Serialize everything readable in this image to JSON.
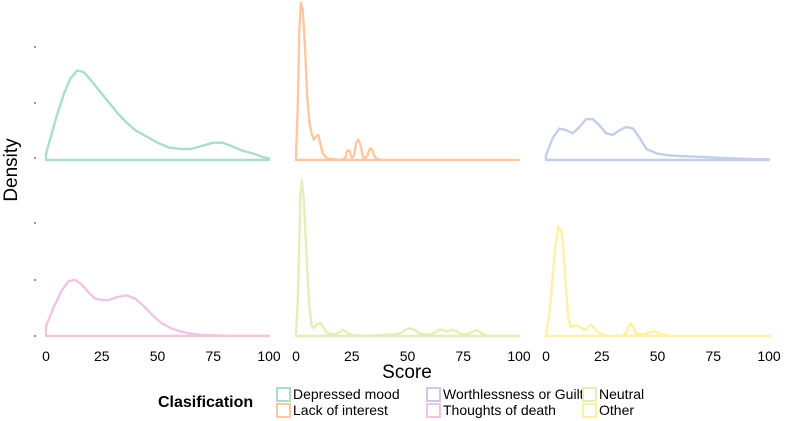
{
  "chart_data": {
    "type": "area",
    "xlabel": "Score",
    "ylabel": "Density",
    "xlim": [
      0,
      100
    ],
    "x_ticks": [
      "0",
      "25",
      "50",
      "75",
      "100"
    ],
    "facets": [
      {
        "name": "Depressed mood",
        "color": "#a9dfc6",
        "points": [
          [
            0,
            0.04
          ],
          [
            2,
            0.14
          ],
          [
            5,
            0.29
          ],
          [
            8,
            0.42
          ],
          [
            11,
            0.52
          ],
          [
            14,
            0.57
          ],
          [
            17,
            0.56
          ],
          [
            20,
            0.51
          ],
          [
            24,
            0.44
          ],
          [
            28,
            0.37
          ],
          [
            32,
            0.3
          ],
          [
            36,
            0.24
          ],
          [
            40,
            0.19
          ],
          [
            45,
            0.15
          ],
          [
            50,
            0.11
          ],
          [
            55,
            0.08
          ],
          [
            60,
            0.07
          ],
          [
            65,
            0.07
          ],
          [
            70,
            0.09
          ],
          [
            75,
            0.11
          ],
          [
            79,
            0.11
          ],
          [
            83,
            0.09
          ],
          [
            88,
            0.06
          ],
          [
            93,
            0.04
          ],
          [
            97,
            0.02
          ],
          [
            100,
            0.01
          ]
        ]
      },
      {
        "name": "Lack of interest",
        "color": "#fcc8a3",
        "points": [
          [
            0,
            0.02
          ],
          [
            0.8,
            0.35
          ],
          [
            1.5,
            0.82
          ],
          [
            2.2,
            1.0
          ],
          [
            3,
            0.96
          ],
          [
            4,
            0.74
          ],
          [
            5,
            0.42
          ],
          [
            6,
            0.24
          ],
          [
            7,
            0.17
          ],
          [
            8,
            0.13
          ],
          [
            9,
            0.15
          ],
          [
            10,
            0.16
          ],
          [
            11,
            0.1
          ],
          [
            12,
            0.04
          ],
          [
            14,
            0.01
          ],
          [
            20,
            0
          ],
          [
            22,
            0.01
          ],
          [
            23,
            0.06
          ],
          [
            24,
            0.06
          ],
          [
            25,
            0.01
          ],
          [
            26,
            0.03
          ],
          [
            27,
            0.11
          ],
          [
            28,
            0.13
          ],
          [
            29,
            0.09
          ],
          [
            30,
            0.02
          ],
          [
            31,
            0.01
          ],
          [
            32,
            0.03
          ],
          [
            33,
            0.07
          ],
          [
            34,
            0.07
          ],
          [
            35,
            0.03
          ],
          [
            36,
            0.01
          ],
          [
            38,
            0
          ],
          [
            100,
            0
          ]
        ]
      },
      {
        "name": "Worthlessness or Guilt",
        "color": "#c5cee8",
        "points": [
          [
            0,
            0.03
          ],
          [
            3,
            0.14
          ],
          [
            6,
            0.2
          ],
          [
            9,
            0.19
          ],
          [
            12,
            0.17
          ],
          [
            15,
            0.21
          ],
          [
            18,
            0.26
          ],
          [
            21,
            0.26
          ],
          [
            24,
            0.22
          ],
          [
            27,
            0.17
          ],
          [
            30,
            0.16
          ],
          [
            33,
            0.19
          ],
          [
            36,
            0.21
          ],
          [
            39,
            0.2
          ],
          [
            42,
            0.14
          ],
          [
            45,
            0.07
          ],
          [
            50,
            0.04
          ],
          [
            55,
            0.03
          ],
          [
            60,
            0.025
          ],
          [
            70,
            0.02
          ],
          [
            80,
            0.012
          ],
          [
            90,
            0.007
          ],
          [
            100,
            0.004
          ]
        ]
      },
      {
        "name": "Thoughts of death",
        "color": "#f0c5e2",
        "points": [
          [
            0,
            0.06
          ],
          [
            3,
            0.17
          ],
          [
            7,
            0.29
          ],
          [
            10,
            0.35
          ],
          [
            13,
            0.36
          ],
          [
            16,
            0.33
          ],
          [
            19,
            0.28
          ],
          [
            22,
            0.24
          ],
          [
            25,
            0.23
          ],
          [
            28,
            0.23
          ],
          [
            32,
            0.25
          ],
          [
            36,
            0.26
          ],
          [
            40,
            0.24
          ],
          [
            44,
            0.19
          ],
          [
            48,
            0.13
          ],
          [
            52,
            0.08
          ],
          [
            56,
            0.05
          ],
          [
            60,
            0.03
          ],
          [
            65,
            0.015
          ],
          [
            70,
            0.007
          ],
          [
            80,
            0.002
          ],
          [
            90,
            0.001
          ],
          [
            100,
            0
          ]
        ]
      },
      {
        "name": "Neutral",
        "color": "#dff0b8",
        "points": [
          [
            0,
            0
          ],
          [
            1,
            0.3
          ],
          [
            2,
            0.92
          ],
          [
            2.6,
            1.0
          ],
          [
            3.5,
            0.88
          ],
          [
            5,
            0.45
          ],
          [
            6,
            0.19
          ],
          [
            7,
            0.07
          ],
          [
            8,
            0.05
          ],
          [
            9,
            0.07
          ],
          [
            10,
            0.08
          ],
          [
            11,
            0.08
          ],
          [
            12,
            0.06
          ],
          [
            14,
            0.02
          ],
          [
            17,
            0.01
          ],
          [
            19,
            0.02
          ],
          [
            20,
            0.03
          ],
          [
            21,
            0.04
          ],
          [
            22,
            0.03
          ],
          [
            24,
            0.01
          ],
          [
            30,
            0
          ],
          [
            45,
            0.01
          ],
          [
            47,
            0.02
          ],
          [
            49,
            0.04
          ],
          [
            51,
            0.05
          ],
          [
            53,
            0.04
          ],
          [
            55,
            0.02
          ],
          [
            57,
            0.01
          ],
          [
            60,
            0.01
          ],
          [
            62,
            0.02
          ],
          [
            64,
            0.04
          ],
          [
            66,
            0.04
          ],
          [
            67,
            0.03
          ],
          [
            68,
            0.03
          ],
          [
            70,
            0.04
          ],
          [
            72,
            0.03
          ],
          [
            74,
            0.01
          ],
          [
            76,
            0.01
          ],
          [
            78,
            0.02
          ],
          [
            80,
            0.03
          ],
          [
            81,
            0.04
          ],
          [
            82,
            0.03
          ],
          [
            84,
            0.01
          ],
          [
            86,
            0
          ],
          [
            100,
            0
          ]
        ]
      },
      {
        "name": "Other",
        "color": "#fdf1a4",
        "points": [
          [
            0,
            0
          ],
          [
            2,
            0.2
          ],
          [
            4,
            0.55
          ],
          [
            5.5,
            0.7
          ],
          [
            7,
            0.67
          ],
          [
            8,
            0.52
          ],
          [
            9,
            0.3
          ],
          [
            10,
            0.12
          ],
          [
            11,
            0.06
          ],
          [
            12,
            0.06
          ],
          [
            13,
            0.07
          ],
          [
            15,
            0.06
          ],
          [
            17,
            0.04
          ],
          [
            18,
            0.04
          ],
          [
            19,
            0.06
          ],
          [
            20,
            0.07
          ],
          [
            21,
            0.06
          ],
          [
            23,
            0.03
          ],
          [
            25,
            0.01
          ],
          [
            28,
            0
          ],
          [
            34,
            0
          ],
          [
            36,
            0.02
          ],
          [
            37,
            0.06
          ],
          [
            38,
            0.08
          ],
          [
            39,
            0.06
          ],
          [
            40,
            0.02
          ],
          [
            42,
            0.01
          ],
          [
            44,
            0.01
          ],
          [
            46,
            0.02
          ],
          [
            48,
            0.03
          ],
          [
            49,
            0.03
          ],
          [
            50,
            0.02
          ],
          [
            52,
            0.01
          ],
          [
            55,
            0
          ],
          [
            100,
            0
          ]
        ]
      }
    ],
    "legend": {
      "title": "Clasification",
      "placement": "bottom"
    }
  }
}
